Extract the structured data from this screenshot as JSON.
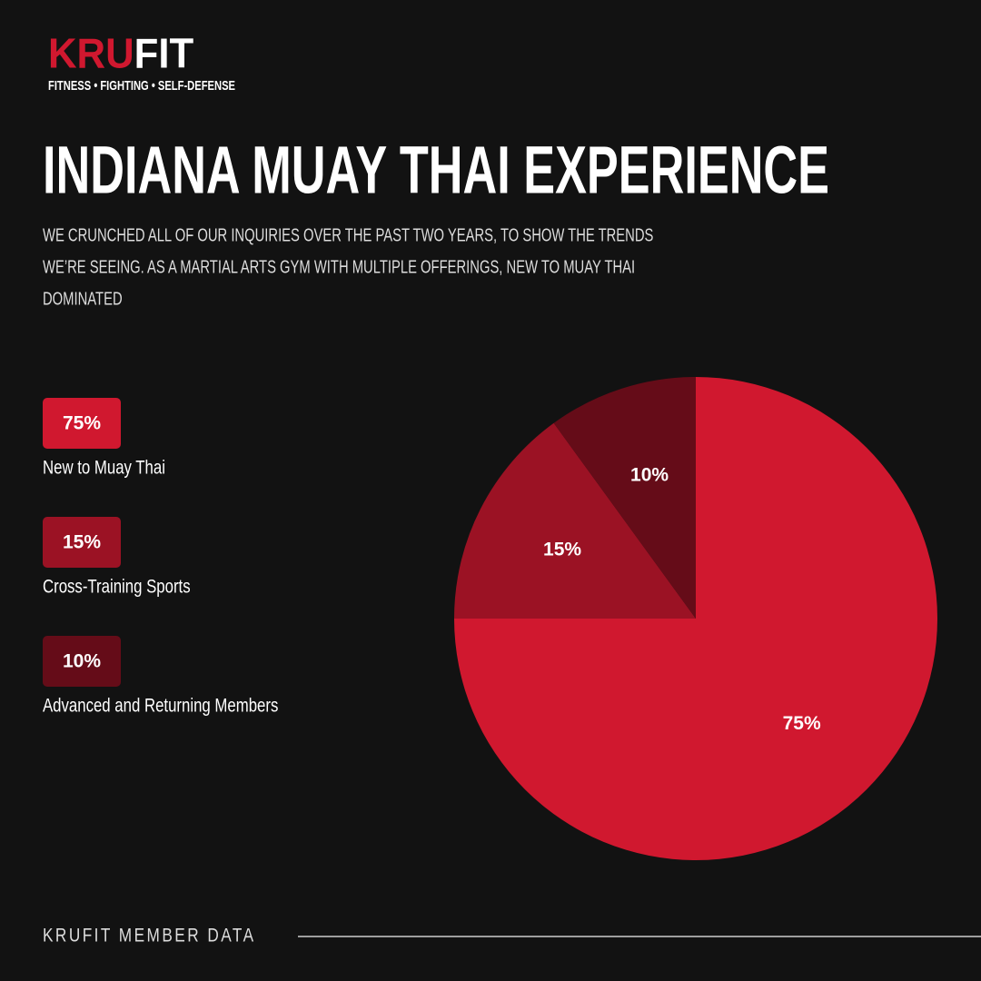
{
  "brand": {
    "name_first": "KRU",
    "name_second": "FIT",
    "tagline": "FITNESS • FIGHTING • SELF-DEFENSE"
  },
  "chart_data": {
    "type": "pie",
    "title": "INDIANA MUAY THAI EXPERIENCE",
    "subtitle": [
      "WE CRUNCHED ALL OF OUR INQUIRIES OVER THE PAST TWO YEARS, TO SHOW THE TRENDS",
      "WE’RE SEEING. AS A MARTIAL ARTS GYM WITH MULTIPLE OFFERINGS, NEW TO MUAY THAI",
      "DOMINATED"
    ],
    "categories": [
      "New to Muay Thai",
      "Cross-Training Sports",
      "Advanced and Returning Members"
    ],
    "values": [
      75,
      15,
      10
    ],
    "value_labels": [
      "75%",
      "15%",
      "10%"
    ],
    "colors": [
      "#d0182f",
      "#9b1224",
      "#650c18"
    ],
    "legend": "left"
  },
  "footer": "KRUFIT MEMBER DATA"
}
